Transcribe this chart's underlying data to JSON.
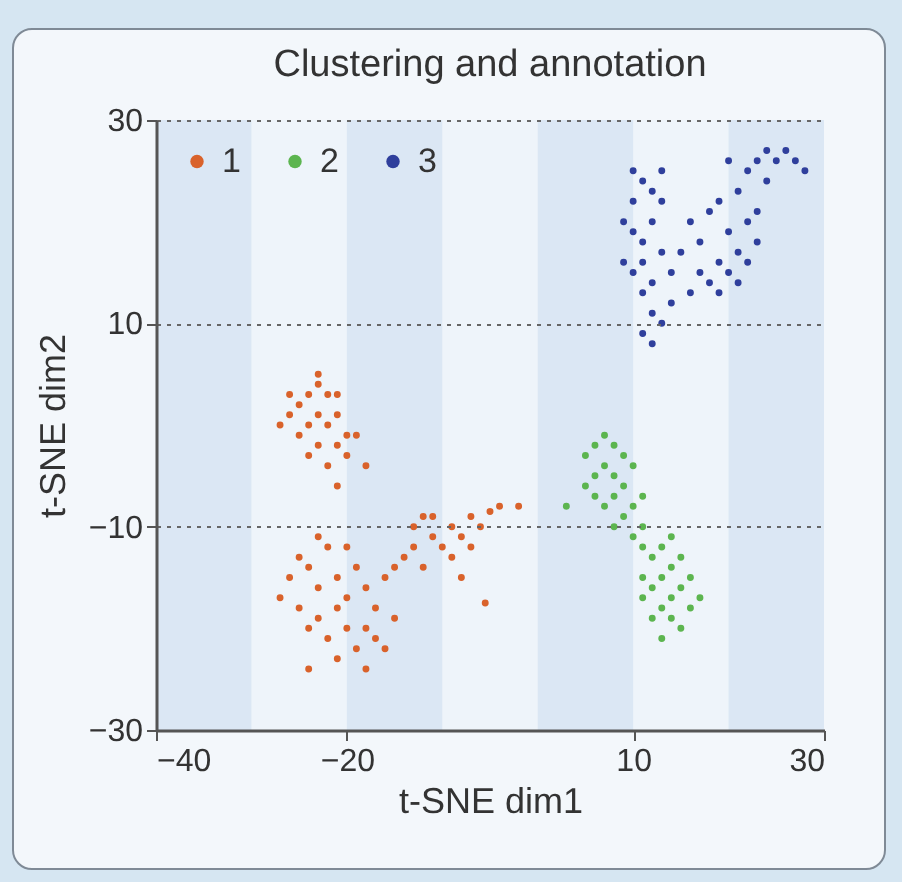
{
  "chart_data": {
    "type": "scatter",
    "title": "Clustering and annotation",
    "xlabel": "t-SNE dim1",
    "ylabel": "t-SNE dim2",
    "xlim": [
      -40,
      30
    ],
    "ylim": [
      -30,
      30
    ],
    "xticks": [
      -40,
      -20,
      10,
      30
    ],
    "yticks": [
      -30,
      -10,
      10,
      30
    ],
    "grid": "y",
    "legend": "top left",
    "marker": "circle",
    "bands": [
      {
        "axis": "x",
        "from": -40,
        "to": -30,
        "color": "#dbe7f4"
      },
      {
        "axis": "x",
        "from": -20,
        "to": -10,
        "color": "#dbe7f4"
      },
      {
        "axis": "x",
        "from": 0,
        "to": 10,
        "color": "#dbe7f4"
      },
      {
        "axis": "x",
        "from": 20,
        "to": 30,
        "color": "#dbe7f4"
      }
    ],
    "series": [
      {
        "name": "1",
        "color": "#d9622b",
        "x": [
          -25,
          -24,
          -23,
          -22,
          -26,
          -24,
          -23,
          -22,
          -21,
          -25,
          -23,
          -21,
          -20,
          -24,
          -22,
          -20,
          -26,
          -27,
          -19,
          -21,
          -18,
          -23,
          -21,
          -26,
          -25,
          -24,
          -23,
          -22,
          -21,
          -20,
          -19,
          -18,
          -17,
          -16,
          -25,
          -24,
          -23,
          -22,
          -21,
          -20,
          -19,
          -18,
          -17,
          -16,
          -24,
          -21,
          -18,
          -27,
          -15,
          -20,
          -23,
          -15,
          -14,
          -13,
          -12,
          -11,
          -10,
          -9,
          -8,
          -7,
          -6,
          -5,
          -11,
          -13,
          -9,
          -7,
          -12,
          -4,
          -2,
          -5.5,
          -8
        ],
        "values": [
          2,
          3,
          4,
          3,
          1,
          0,
          1,
          0,
          1,
          -1,
          -2,
          -2,
          -1,
          -3,
          -4,
          -3,
          3,
          0,
          -1,
          -6,
          -4,
          5,
          3,
          -15,
          -13,
          -14,
          -16,
          -12,
          -15,
          -17,
          -14,
          -16,
          -18,
          -15,
          -18,
          -20,
          -19,
          -21,
          -18,
          -20,
          -22,
          -20,
          -21,
          -22,
          -24,
          -23,
          -24,
          -17,
          -19,
          -12,
          -11,
          -14,
          -13,
          -12,
          -14,
          -11,
          -12,
          -10,
          -11,
          -9,
          -10,
          -8.5,
          -9,
          -10,
          -13,
          -12,
          -9,
          -8,
          -8,
          -17.5,
          -15
        ]
      },
      {
        "name": "2",
        "color": "#5cb54f",
        "x": [
          5,
          6,
          7,
          8,
          9,
          6,
          7,
          8,
          9,
          10,
          5,
          6,
          7,
          8,
          9,
          10,
          11,
          8,
          10,
          11,
          3,
          11,
          12,
          13,
          14,
          15,
          11,
          12,
          13,
          14,
          15,
          16,
          12,
          13,
          14,
          15,
          16,
          11,
          13,
          17,
          14
        ],
        "values": [
          -3,
          -2,
          -1,
          -2,
          -3,
          -5,
          -4,
          -5,
          -6,
          -4,
          -6,
          -7,
          -8,
          -7,
          -9,
          -8,
          -7,
          -10,
          -11,
          -10,
          -8,
          -12,
          -13,
          -12,
          -14,
          -13,
          -15,
          -16,
          -15,
          -17,
          -16,
          -15,
          -19,
          -18,
          -19,
          -20,
          -18,
          -17,
          -21,
          -17,
          -11
        ]
      },
      {
        "name": "3",
        "color": "#2f3f9c",
        "x": [
          9,
          10,
          11,
          12,
          10,
          11,
          12,
          13,
          9,
          10,
          11,
          12,
          13,
          11,
          12,
          13,
          11,
          12,
          14,
          14,
          10,
          13,
          16,
          17,
          18,
          19,
          20,
          21,
          22,
          17,
          18,
          19,
          20,
          21,
          22,
          23,
          19,
          21,
          23,
          24,
          22,
          25,
          26,
          27,
          24,
          28,
          23,
          20,
          16,
          15
        ],
        "values": [
          20,
          22,
          24,
          23,
          19,
          18,
          20,
          22,
          16,
          15,
          16,
          14,
          17,
          13,
          11,
          10,
          9,
          8,
          12,
          15,
          25,
          25,
          20,
          18,
          21,
          16,
          19,
          17,
          20,
          15,
          14,
          13,
          15,
          14,
          16,
          18,
          22,
          23,
          21,
          24,
          25,
          26,
          27,
          26,
          27,
          25,
          26,
          26,
          13,
          17
        ]
      }
    ]
  }
}
